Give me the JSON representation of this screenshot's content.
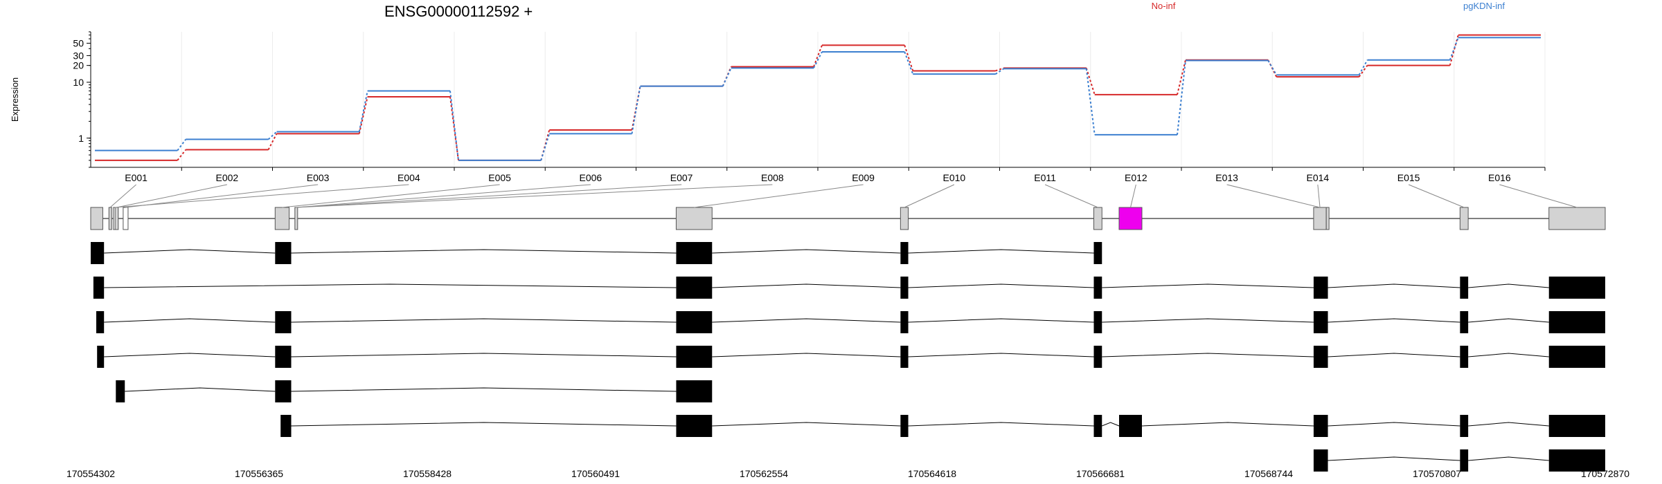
{
  "chart_data": {
    "type": "line",
    "title": "ENSG00000112592 +",
    "ylabel": "Expression",
    "y_scale": "log",
    "ylim": [
      0.3,
      80
    ],
    "y_ticks": [
      {
        "value": 1,
        "label": "1"
      },
      {
        "value": 10,
        "label": "10"
      },
      {
        "value": 20,
        "label": "20"
      },
      {
        "value": 30,
        "label": "30"
      },
      {
        "value": 50,
        "label": "50"
      }
    ],
    "legend": [
      {
        "name": "No-inf",
        "color": "#d62728"
      },
      {
        "name": "pgKDN-inf",
        "color": "#3b7fd0"
      }
    ],
    "categories": [
      "E001",
      "E002",
      "E003",
      "E004",
      "E005",
      "E006",
      "E007",
      "E008",
      "E009",
      "E010",
      "E011",
      "E012",
      "E013",
      "E014",
      "E015",
      "E016"
    ],
    "series": [
      {
        "name": "No-inf",
        "color": "#d62728",
        "values": [
          0.4,
          0.62,
          1.2,
          5.5,
          0.4,
          1.4,
          8.5,
          19,
          46,
          16,
          18,
          6,
          25,
          12.5,
          20,
          70
        ]
      },
      {
        "name": "pgKDN-inf",
        "color": "#3b7fd0",
        "values": [
          0.6,
          0.95,
          1.3,
          7,
          0.4,
          1.2,
          8.5,
          18,
          35,
          14,
          17.5,
          1.15,
          24.5,
          13.5,
          25,
          63
        ]
      }
    ],
    "genomic_ticks": [
      "170554302",
      "170556365",
      "170558428",
      "170560491",
      "170562554",
      "170564618",
      "170566681",
      "170568744",
      "170570807",
      "170572870"
    ],
    "genomic_range": [
      170554302,
      170572870
    ],
    "gene_model": {
      "exons": [
        {
          "start": 170554302,
          "end": 170554450,
          "color": "#d3d3d3"
        },
        {
          "start": 170554525,
          "end": 170554555,
          "color": "#d3d3d3"
        },
        {
          "start": 170554600,
          "end": 170554640,
          "color": "#d3d3d3"
        },
        {
          "start": 170554700,
          "end": 170554760,
          "color": "#ffffff"
        },
        {
          "start": 170554580,
          "end": 170554620,
          "color": "#ffffff"
        },
        {
          "start": 170556563,
          "end": 170556735,
          "color": "#d3d3d3"
        },
        {
          "start": 170556805,
          "end": 170556835,
          "color": "#d3d3d3"
        },
        {
          "start": 170561480,
          "end": 170561920,
          "color": "#d3d3d3"
        },
        {
          "start": 170564230,
          "end": 170564325,
          "color": "#d3d3d3"
        },
        {
          "start": 170566600,
          "end": 170566700,
          "color": "#d3d3d3"
        },
        {
          "start": 170566910,
          "end": 170567190,
          "color": "#ee00ee"
        },
        {
          "start": 170569295,
          "end": 170569450,
          "color": "#d3d3d3"
        },
        {
          "start": 170569450,
          "end": 170569470,
          "color": "#d3d3d3"
        },
        {
          "start": 170571090,
          "end": 170571190,
          "color": "#d3d3d3"
        },
        {
          "start": 170572180,
          "end": 170572870,
          "color": "#d3d3d3"
        }
      ],
      "exon_column_links": [
        [
          0,
          1
        ],
        [
          1,
          2
        ],
        [
          2,
          3
        ],
        [
          3,
          4
        ],
        [
          4,
          5
        ],
        [
          5,
          6
        ],
        [
          6,
          6
        ],
        [
          7,
          6
        ],
        [
          8,
          7
        ],
        [
          9,
          8
        ],
        [
          10,
          9
        ],
        [
          11,
          10
        ],
        [
          12,
          11
        ],
        [
          13,
          11
        ],
        [
          14,
          13
        ],
        [
          15,
          14
        ]
      ]
    },
    "transcripts": [
      {
        "exons": [
          [
            170554302,
            170554465
          ],
          [
            170556563,
            170556760
          ],
          [
            170561480,
            170561920
          ],
          [
            170564230,
            170564325
          ],
          [
            170566600,
            170566700
          ]
        ]
      },
      {
        "exons": [
          [
            170554335,
            170554465
          ],
          [
            170561480,
            170561920
          ],
          [
            170564230,
            170564325
          ],
          [
            170566600,
            170566700
          ],
          [
            170569295,
            170569470
          ],
          [
            170571090,
            170571190
          ],
          [
            170572180,
            170572870
          ]
        ]
      },
      {
        "exons": [
          [
            170554370,
            170554465
          ],
          [
            170556563,
            170556760
          ],
          [
            170561480,
            170561920
          ],
          [
            170564230,
            170564325
          ],
          [
            170566600,
            170566700
          ],
          [
            170569295,
            170569470
          ],
          [
            170571090,
            170571190
          ],
          [
            170572180,
            170572870
          ]
        ]
      },
      {
        "exons": [
          [
            170554380,
            170554465
          ],
          [
            170556563,
            170556760
          ],
          [
            170561480,
            170561920
          ],
          [
            170564230,
            170564325
          ],
          [
            170566600,
            170566700
          ],
          [
            170569295,
            170569470
          ],
          [
            170571090,
            170571190
          ],
          [
            170572180,
            170572870
          ]
        ]
      },
      {
        "exons": [
          [
            170554610,
            170554720
          ],
          [
            170556563,
            170556760
          ],
          [
            170561480,
            170561920
          ]
        ]
      },
      {
        "exons": [
          [
            170556630,
            170556760
          ],
          [
            170561480,
            170561920
          ],
          [
            170564230,
            170564325
          ],
          [
            170566600,
            170566700
          ],
          [
            170566910,
            170567190
          ],
          [
            170569295,
            170569470
          ],
          [
            170571090,
            170571190
          ],
          [
            170572180,
            170572870
          ]
        ]
      },
      {
        "exons": [
          [
            170569295,
            170569470
          ],
          [
            170571090,
            170571190
          ],
          [
            170572180,
            170572870
          ]
        ]
      }
    ]
  }
}
